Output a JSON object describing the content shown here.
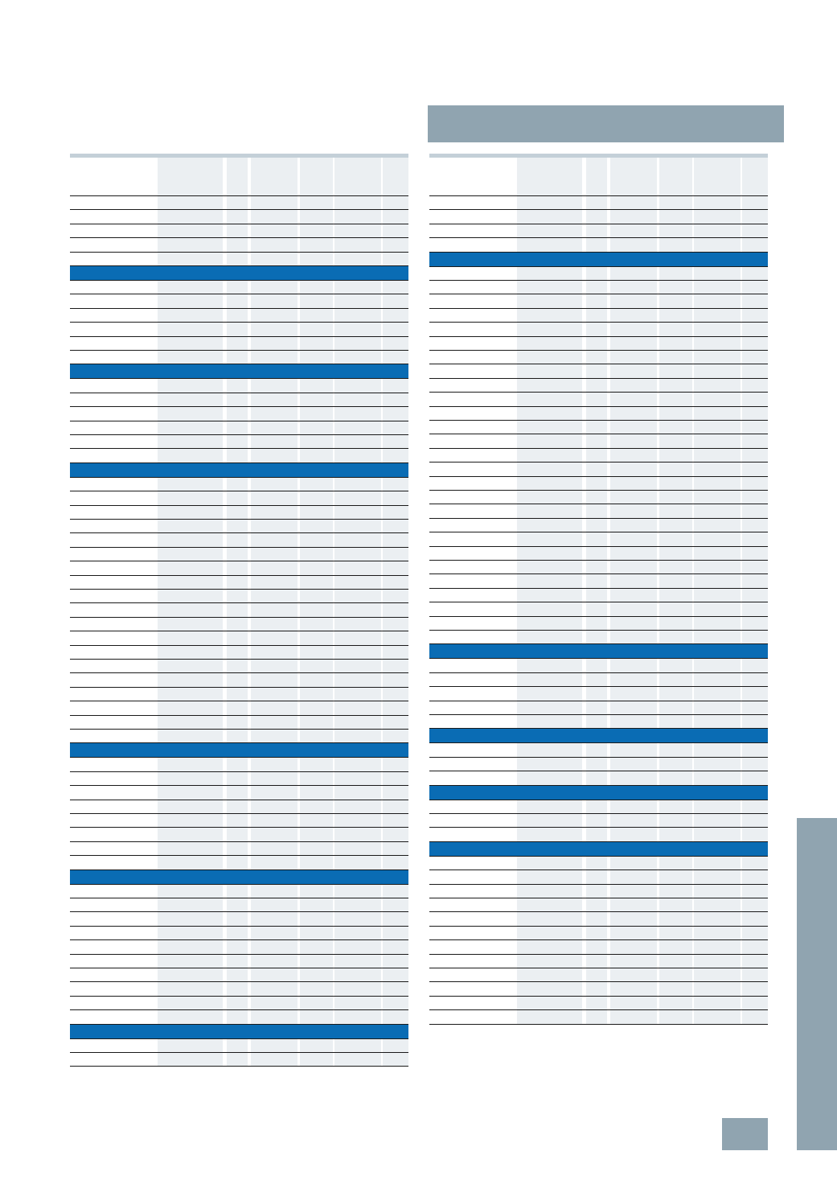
{
  "document": {
    "title": "",
    "page_number": "",
    "side_tab_label": ""
  },
  "left_table": {
    "columns": [
      "",
      "",
      "",
      "",
      "",
      "",
      ""
    ],
    "sections": [
      {
        "header": "",
        "rows": 5
      },
      {
        "header": "",
        "rows": 6
      },
      {
        "header": "",
        "rows": 6
      },
      {
        "header": "",
        "rows": 19
      },
      {
        "header": "",
        "rows": 8
      },
      {
        "header": "",
        "rows": 10
      },
      {
        "header": "",
        "rows": 2
      }
    ]
  },
  "right_table": {
    "columns": [
      "",
      "",
      "",
      "",
      "",
      "",
      ""
    ],
    "sections": [
      {
        "header": "",
        "rows": 4
      },
      {
        "header": "",
        "rows": 27
      },
      {
        "header": "",
        "rows": 5
      },
      {
        "header": "",
        "rows": 3
      },
      {
        "header": "",
        "rows": 3
      },
      {
        "header": "",
        "rows": 12
      }
    ]
  },
  "colors": {
    "title_bar": "#90a4b0",
    "section_band": "#0a6cb4",
    "column_shade": "#ebeff2",
    "top_rule": "#c4d0d8",
    "row_rule": "#1a1a1a"
  }
}
